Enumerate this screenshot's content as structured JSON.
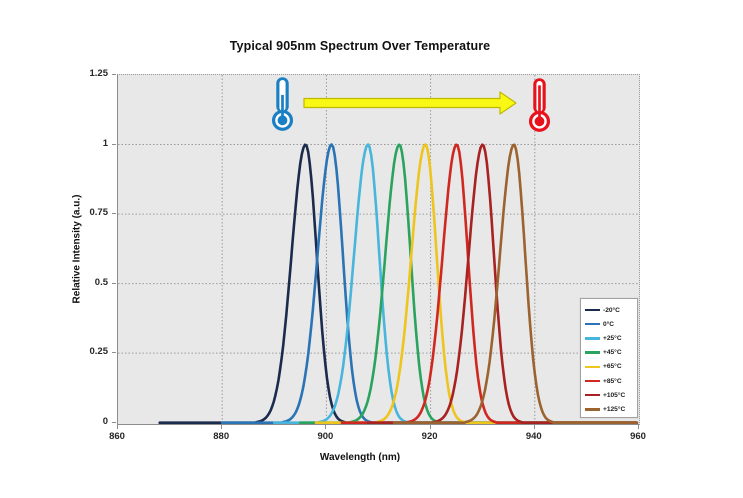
{
  "title": "Typical 905nm Spectrum Over Temperature",
  "chart_data": {
    "type": "line",
    "title": "Typical 905nm Spectrum Over Temperature",
    "xlabel": "Wavelength (nm)",
    "ylabel": "Relative Intensity (a.u.)",
    "xlim": [
      860,
      960
    ],
    "ylim": [
      0,
      1.25
    ],
    "grid": true,
    "plot_background": "#e8e8e8",
    "gridline_color": "#9a9a9a",
    "x_tick_labels": [
      "860",
      "880",
      "900",
      "920",
      "940",
      "960"
    ],
    "x_tick_values": [
      860,
      880,
      900,
      920,
      940,
      960
    ],
    "y_tick_labels": [
      "1.25",
      "1",
      "0.75",
      "0.5",
      "0.25",
      "0"
    ],
    "y_tick_values": [
      1.25,
      1,
      0.75,
      0.5,
      0.25,
      0
    ],
    "legend_position": "inside-right",
    "fwhm_nm": 5.5,
    "peak_intensity": 1.0,
    "series": [
      {
        "name": "-20°C",
        "color": "#1B2B4D",
        "peak_nm": 896,
        "peak_intensity": 1.0,
        "tail_start_nm": 868
      },
      {
        "name": "0°C",
        "color": "#2A74B5",
        "peak_nm": 901,
        "peak_intensity": 1.0,
        "tail_start_nm": 880
      },
      {
        "name": "+25°C",
        "color": "#47B5DC",
        "peak_nm": 908,
        "peak_intensity": 1.0,
        "tail_start_nm": 890
      },
      {
        "name": "+45°C",
        "color": "#2AA35E",
        "peak_nm": 914,
        "peak_intensity": 1.0,
        "tail_start_nm": 895
      },
      {
        "name": "+65°C",
        "color": "#EEC41E",
        "peak_nm": 919,
        "peak_intensity": 1.0,
        "tail_start_nm": 898
      },
      {
        "name": "+85°C",
        "color": "#D02820",
        "peak_nm": 925,
        "peak_intensity": 1.0,
        "tail_start_nm": 903
      },
      {
        "name": "+105°C",
        "color": "#A82222",
        "peak_nm": 930,
        "peak_intensity": 1.0,
        "tail_start_nm": 908
      },
      {
        "name": "+125°C",
        "color": "#9C6230",
        "peak_nm": 936,
        "peak_intensity": 1.0,
        "tail_start_nm": 913
      }
    ]
  },
  "annotations": {
    "cold_thermometer_color": "#1B7FC4",
    "hot_thermometer_color": "#E8121C",
    "arrow_fill": "#F9F815",
    "arrow_stroke": "#BDB800",
    "arrow_meaning": "increasing temperature shifts spectrum to longer wavelength"
  }
}
